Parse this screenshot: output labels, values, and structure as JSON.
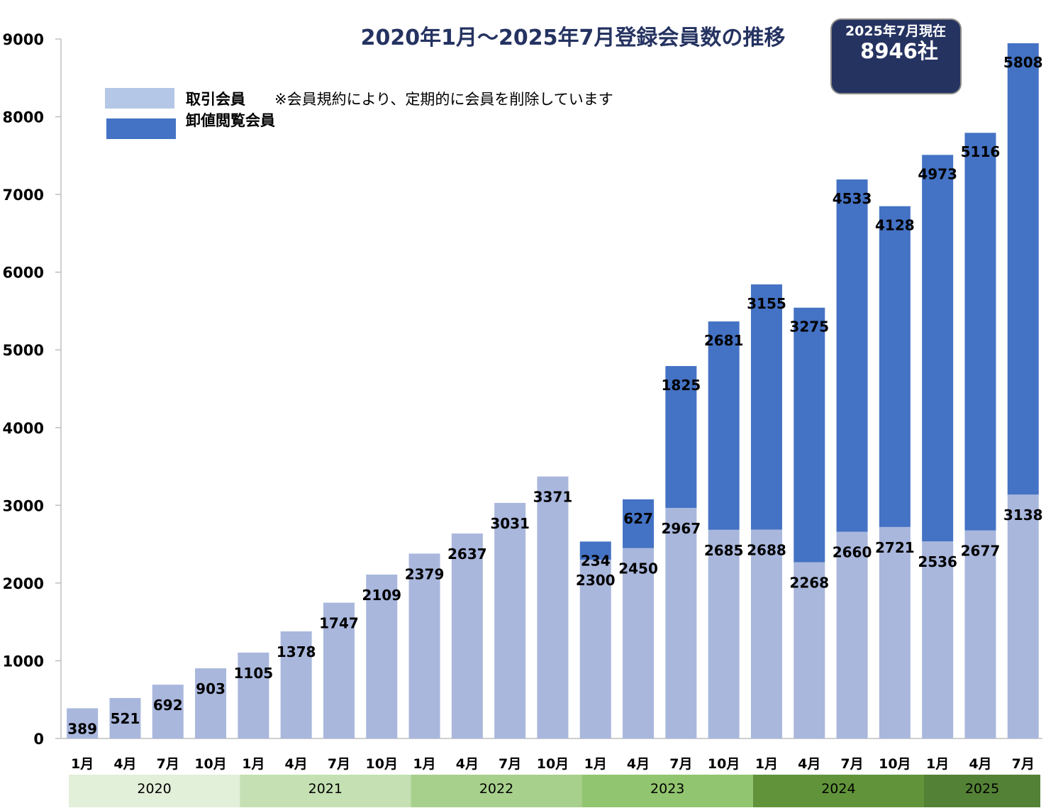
{
  "chart_data": {
    "type": "bar",
    "stacked": true,
    "title": "2020年1月～2025年7月登録会員数の推移",
    "ylim": [
      0,
      9000
    ],
    "yticks": [
      0,
      1000,
      2000,
      3000,
      4000,
      5000,
      6000,
      7000,
      8000,
      9000
    ],
    "grid": false,
    "legend_position": "top-left",
    "categories": [
      "1月",
      "4月",
      "7月",
      "10月",
      "1月",
      "4月",
      "7月",
      "10月",
      "1月",
      "4月",
      "7月",
      "10月",
      "1月",
      "4月",
      "7月",
      "10月",
      "1月",
      "4月",
      "7月",
      "10月",
      "1月",
      "4月",
      "7月"
    ],
    "years": [
      {
        "label": "2020",
        "count": 4,
        "color": "#e2efd9"
      },
      {
        "label": "2021",
        "count": 4,
        "color": "#c5e0b3"
      },
      {
        "label": "2022",
        "count": 4,
        "color": "#a8d08d"
      },
      {
        "label": "2023",
        "count": 4,
        "color": "#92c56f"
      },
      {
        "label": "2024",
        "count": 4,
        "color": "#61943a"
      },
      {
        "label": "2025",
        "count": 3,
        "color": "#538135"
      }
    ],
    "series": [
      {
        "name": "取引会員",
        "color": "#a9b7dd",
        "values": [
          389,
          521,
          692,
          903,
          1105,
          1378,
          1747,
          2109,
          2379,
          2637,
          3031,
          3371,
          2300,
          2450,
          2967,
          2685,
          2688,
          2268,
          2660,
          2721,
          2536,
          2677,
          3138
        ]
      },
      {
        "name": "卸値閲覧会員",
        "color": "#4472c4",
        "values": [
          null,
          null,
          null,
          null,
          null,
          null,
          null,
          null,
          null,
          null,
          null,
          null,
          234,
          627,
          1825,
          2681,
          3155,
          3275,
          4533,
          4128,
          4973,
          5116,
          5808
        ]
      }
    ]
  },
  "legend": {
    "note": "※会員規約により、定期的に会員を削除しています"
  },
  "summary_box": {
    "label": "2025年7月現在",
    "value": "8946社",
    "color": "#253361"
  }
}
